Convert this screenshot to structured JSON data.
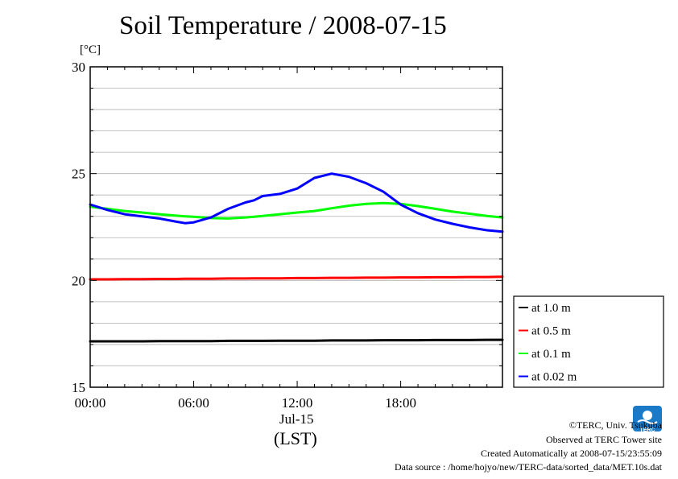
{
  "header": {
    "title": "Soil Temperature / 2008-07-15",
    "unit": "[°C]"
  },
  "axis": {
    "date_label": "Jul-15",
    "xlabel": "(LST)"
  },
  "credits": {
    "copyright": "©TERC, Univ. Tsukuba",
    "site": "Observed at TERC Tower site",
    "created": "Created Automatically at 2008-07-15/23:55:09",
    "source": "Data source : /home/hojyo/new/TERC-data/sorted_data/MET.10s.dat"
  },
  "logo": {
    "text": "TERC",
    "color": "#1a7ac8"
  },
  "chart_data": {
    "type": "line",
    "title": "Soil Temperature / 2008-07-15",
    "ylabel": "[°C]",
    "xlabel": "(LST)",
    "xlim": [
      0,
      23.9
    ],
    "ylim": [
      15,
      30
    ],
    "xticks": [
      0,
      6,
      12,
      18
    ],
    "xticklabels": [
      "00:00",
      "06:00",
      "12:00",
      "18:00"
    ],
    "yticks": [
      15,
      20,
      25,
      30
    ],
    "yticklabels": [
      "15",
      "20",
      "25",
      "30"
    ],
    "grid": true,
    "legend_position": "bottom-right outside",
    "x": [
      0,
      1,
      2,
      3,
      4,
      5,
      5.5,
      6,
      7,
      8,
      9,
      9.5,
      10,
      11,
      12,
      13,
      14,
      15,
      16,
      17,
      18,
      19,
      20,
      21,
      22,
      23,
      23.9
    ],
    "series": [
      {
        "name": "at 1.0 m",
        "color": "#000000",
        "values": [
          17.15,
          17.15,
          17.15,
          17.15,
          17.16,
          17.16,
          17.16,
          17.16,
          17.16,
          17.17,
          17.17,
          17.17,
          17.17,
          17.18,
          17.18,
          17.18,
          17.19,
          17.19,
          17.19,
          17.2,
          17.2,
          17.2,
          17.21,
          17.21,
          17.21,
          17.22,
          17.22
        ]
      },
      {
        "name": "at 0.5 m",
        "color": "#ff0000",
        "values": [
          20.05,
          20.05,
          20.06,
          20.06,
          20.07,
          20.07,
          20.08,
          20.08,
          20.08,
          20.09,
          20.09,
          20.1,
          20.1,
          20.1,
          20.11,
          20.11,
          20.12,
          20.12,
          20.13,
          20.13,
          20.14,
          20.14,
          20.15,
          20.15,
          20.16,
          20.16,
          20.17
        ]
      },
      {
        "name": "at 0.1 m",
        "color": "#00ff00",
        "values": [
          23.45,
          23.35,
          23.25,
          23.18,
          23.1,
          23.03,
          23.0,
          22.98,
          22.92,
          22.9,
          22.95,
          22.98,
          23.02,
          23.1,
          23.18,
          23.25,
          23.38,
          23.5,
          23.58,
          23.62,
          23.58,
          23.48,
          23.35,
          23.22,
          23.12,
          23.02,
          22.95
        ]
      },
      {
        "name": "at 0.02 m",
        "color": "#0000ff",
        "values": [
          23.55,
          23.3,
          23.1,
          23.0,
          22.9,
          22.75,
          22.68,
          22.72,
          22.95,
          23.35,
          23.65,
          23.75,
          23.95,
          24.05,
          24.3,
          24.8,
          25.0,
          24.85,
          24.55,
          24.15,
          23.55,
          23.15,
          22.85,
          22.65,
          22.48,
          22.35,
          22.28
        ]
      }
    ]
  }
}
